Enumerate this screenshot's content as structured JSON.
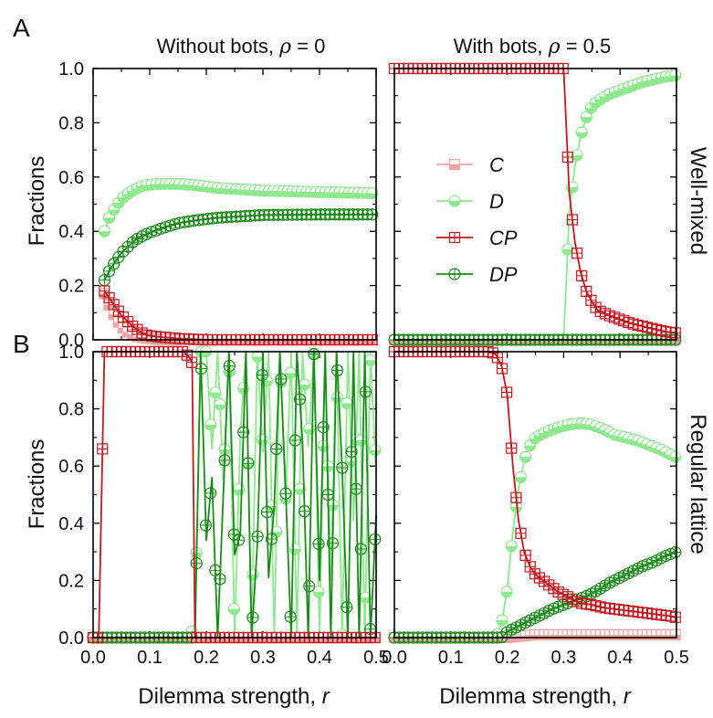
{
  "figure": {
    "panel_labels": [
      "A",
      "B"
    ],
    "column_titles": [
      {
        "prefix": "Without bots, ",
        "symbol": "ρ",
        "suffix": " = 0"
      },
      {
        "prefix": "With bots, ",
        "symbol": "ρ",
        "suffix": " = 0.5"
      }
    ],
    "row_titles": [
      "Well-mixed",
      "Regular lattice"
    ],
    "ylabel": "Fractions",
    "xlabel_prefix": "Dilemma strength, ",
    "xlabel_symbol": "r",
    "colors": {
      "C": "#f4a3a3",
      "D": "#8ee88e",
      "CP": "#c0181e",
      "DP": "#1a8a1a"
    }
  },
  "chart_data": [
    {
      "type": "line",
      "panel": "A-left",
      "title": "Without bots, ρ = 0",
      "xlim": [
        0,
        0.5
      ],
      "ylim": [
        0,
        1
      ],
      "xticks": [
        "0.0",
        "0.1",
        "0.2",
        "0.3",
        "0.4",
        "0.5"
      ],
      "yticks": [
        "0.0",
        "0.2",
        "0.4",
        "0.6",
        "0.8",
        "1.0"
      ],
      "legend": [
        "C",
        "D",
        "CP",
        "DP"
      ],
      "series": [
        {
          "name": "C",
          "points": [
            [
              0.02,
              0.17
            ],
            [
              0.03,
              0.12
            ],
            [
              0.04,
              0.08
            ],
            [
              0.05,
              0.05
            ],
            [
              0.06,
              0.03
            ],
            [
              0.07,
              0.02
            ],
            [
              0.08,
              0.01
            ],
            [
              0.1,
              0.005
            ],
            [
              0.12,
              0
            ],
            [
              0.5,
              0
            ]
          ]
        },
        {
          "name": "D",
          "points": [
            [
              0.02,
              0.4
            ],
            [
              0.03,
              0.46
            ],
            [
              0.05,
              0.52
            ],
            [
              0.07,
              0.55
            ],
            [
              0.09,
              0.57
            ],
            [
              0.12,
              0.575
            ],
            [
              0.15,
              0.575
            ],
            [
              0.18,
              0.57
            ],
            [
              0.22,
              0.56
            ],
            [
              0.3,
              0.55
            ],
            [
              0.4,
              0.545
            ],
            [
              0.5,
              0.54
            ]
          ]
        },
        {
          "name": "CP",
          "points": [
            [
              0.02,
              0.18
            ],
            [
              0.03,
              0.15
            ],
            [
              0.04,
              0.12
            ],
            [
              0.05,
              0.09
            ],
            [
              0.06,
              0.07
            ],
            [
              0.07,
              0.05
            ],
            [
              0.08,
              0.035
            ],
            [
              0.09,
              0.02
            ],
            [
              0.1,
              0.015
            ],
            [
              0.12,
              0.01
            ],
            [
              0.15,
              0.005
            ],
            [
              0.2,
              0
            ],
            [
              0.5,
              0
            ]
          ]
        },
        {
          "name": "DP",
          "points": [
            [
              0.02,
              0.22
            ],
            [
              0.03,
              0.26
            ],
            [
              0.04,
              0.29
            ],
            [
              0.05,
              0.32
            ],
            [
              0.06,
              0.34
            ],
            [
              0.07,
              0.36
            ],
            [
              0.08,
              0.375
            ],
            [
              0.1,
              0.395
            ],
            [
              0.12,
              0.41
            ],
            [
              0.15,
              0.43
            ],
            [
              0.18,
              0.44
            ],
            [
              0.22,
              0.45
            ],
            [
              0.26,
              0.455
            ],
            [
              0.3,
              0.46
            ],
            [
              0.4,
              0.462
            ],
            [
              0.5,
              0.462
            ]
          ]
        }
      ]
    },
    {
      "type": "line",
      "panel": "A-right",
      "title": "With bots, ρ = 0.5",
      "xlim": [
        0,
        0.5
      ],
      "ylim": [
        0,
        1
      ],
      "xticks": [
        "0.0",
        "0.1",
        "0.2",
        "0.3",
        "0.4",
        "0.5"
      ],
      "yticks": [
        "0.0",
        "0.2",
        "0.4",
        "0.6",
        "0.8",
        "1.0"
      ],
      "series": [
        {
          "name": "C",
          "points": [
            [
              0,
              0
            ],
            [
              0.5,
              0
            ]
          ]
        },
        {
          "name": "D",
          "points": [
            [
              0,
              0
            ],
            [
              0.3,
              0
            ],
            [
              0.31,
              0.47
            ],
            [
              0.32,
              0.64
            ],
            [
              0.33,
              0.75
            ],
            [
              0.34,
              0.82
            ],
            [
              0.35,
              0.86
            ],
            [
              0.36,
              0.88
            ],
            [
              0.38,
              0.905
            ],
            [
              0.4,
              0.92
            ],
            [
              0.42,
              0.935
            ],
            [
              0.44,
              0.95
            ],
            [
              0.46,
              0.96
            ],
            [
              0.48,
              0.97
            ],
            [
              0.5,
              0.975
            ]
          ]
        },
        {
          "name": "CP",
          "points": [
            [
              0,
              1
            ],
            [
              0.3,
              1
            ],
            [
              0.31,
              0.54
            ],
            [
              0.32,
              0.36
            ],
            [
              0.33,
              0.25
            ],
            [
              0.34,
              0.18
            ],
            [
              0.35,
              0.14
            ],
            [
              0.36,
              0.11
            ],
            [
              0.38,
              0.09
            ],
            [
              0.4,
              0.075
            ],
            [
              0.42,
              0.06
            ],
            [
              0.44,
              0.05
            ],
            [
              0.46,
              0.04
            ],
            [
              0.48,
              0.03
            ],
            [
              0.5,
              0.025
            ]
          ]
        },
        {
          "name": "DP",
          "points": [
            [
              0,
              0
            ],
            [
              0.5,
              0
            ]
          ]
        }
      ]
    },
    {
      "type": "line",
      "panel": "B-left",
      "xlim": [
        0,
        0.5
      ],
      "ylim": [
        0,
        1
      ],
      "xticks": [
        "0.0",
        "0.1",
        "0.2",
        "0.3",
        "0.4",
        "0.5"
      ],
      "yticks": [
        "0.0",
        "0.2",
        "0.4",
        "0.6",
        "0.8",
        "1.0"
      ],
      "series": [
        {
          "name": "C",
          "points": [
            [
              0,
              0
            ],
            [
              0.5,
              0
            ]
          ]
        },
        {
          "name": "D",
          "points": [
            [
              0,
              0
            ],
            [
              0.17,
              0
            ],
            [
              0.18,
              0.05
            ],
            [
              0.19,
              1
            ],
            [
              0.2,
              1
            ],
            [
              0.21,
              0.66
            ],
            [
              0.22,
              1
            ],
            [
              0.23,
              0.55
            ],
            [
              0.24,
              1
            ],
            [
              0.25,
              0
            ],
            [
              0.26,
              0.71
            ],
            [
              0.27,
              1
            ],
            [
              0.28,
              0
            ],
            [
              0.29,
              1
            ],
            [
              0.3,
              0.65
            ],
            [
              0.31,
              1
            ],
            [
              0.32,
              0
            ],
            [
              0.33,
              1
            ],
            [
              0.34,
              0.47
            ],
            [
              0.35,
              1
            ],
            [
              0.36,
              0
            ],
            [
              0.37,
              1
            ],
            [
              0.38,
              0.67
            ],
            [
              0.39,
              1
            ],
            [
              0.4,
              0
            ],
            [
              0.41,
              1
            ],
            [
              0.42,
              0.2
            ],
            [
              0.43,
              1
            ],
            [
              0.44,
              0
            ],
            [
              0.45,
              1
            ],
            [
              0.46,
              0.41
            ],
            [
              0.47,
              1
            ],
            [
              0.48,
              0
            ],
            [
              0.49,
              1
            ],
            [
              0.5,
              0.57
            ]
          ]
        },
        {
          "name": "CP",
          "points": [
            [
              0,
              0
            ],
            [
              0.01,
              0
            ],
            [
              0.02,
              1
            ],
            [
              0.16,
              1
            ],
            [
              0.17,
              0.98
            ],
            [
              0.175,
              0.96
            ],
            [
              0.18,
              0
            ],
            [
              0.5,
              0
            ]
          ]
        },
        {
          "name": "DP",
          "points": [
            [
              0,
              0
            ],
            [
              0.17,
              0
            ],
            [
              0.18,
              0
            ],
            [
              0.19,
              1
            ],
            [
              0.2,
              0.34
            ],
            [
              0.21,
              0.56
            ],
            [
              0.22,
              0
            ],
            [
              0.23,
              0.5
            ],
            [
              0.24,
              1
            ],
            [
              0.25,
              0.29
            ],
            [
              0.26,
              0.36
            ],
            [
              0.27,
              1
            ],
            [
              0.28,
              0
            ],
            [
              0.29,
              0.32
            ],
            [
              0.3,
              1
            ],
            [
              0.31,
              0.21
            ],
            [
              0.32,
              0.46
            ],
            [
              0.33,
              1
            ],
            [
              0.34,
              0.52
            ],
            [
              0.35,
              0
            ],
            [
              0.36,
              1
            ],
            [
              0.37,
              0.68
            ],
            [
              0.38,
              0
            ],
            [
              0.39,
              1
            ],
            [
              0.4,
              0.2
            ],
            [
              0.41,
              1
            ],
            [
              0.42,
              0
            ],
            [
              0.43,
              1
            ],
            [
              0.44,
              0.59
            ],
            [
              0.45,
              0
            ],
            [
              0.46,
              1
            ],
            [
              0.47,
              0
            ],
            [
              0.48,
              1
            ],
            [
              0.49,
              0
            ],
            [
              0.5,
              0.43
            ]
          ]
        }
      ]
    },
    {
      "type": "line",
      "panel": "B-right",
      "xlim": [
        0,
        0.5
      ],
      "ylim": [
        0,
        1
      ],
      "xticks": [
        "0.0",
        "0.1",
        "0.2",
        "0.3",
        "0.4",
        "0.5"
      ],
      "yticks": [
        "0.0",
        "0.2",
        "0.4",
        "0.6",
        "0.8",
        "1.0"
      ],
      "series": [
        {
          "name": "C",
          "points": [
            [
              0,
              0
            ],
            [
              0.2,
              0
            ],
            [
              0.22,
              0.005
            ],
            [
              0.25,
              0.01
            ],
            [
              0.3,
              0.01
            ],
            [
              0.5,
              0.01
            ]
          ]
        },
        {
          "name": "D",
          "points": [
            [
              0,
              0
            ],
            [
              0.18,
              0
            ],
            [
              0.19,
              0.05
            ],
            [
              0.2,
              0.17
            ],
            [
              0.21,
              0.37
            ],
            [
              0.22,
              0.52
            ],
            [
              0.23,
              0.62
            ],
            [
              0.24,
              0.67
            ],
            [
              0.25,
              0.7
            ],
            [
              0.27,
              0.72
            ],
            [
              0.29,
              0.735
            ],
            [
              0.31,
              0.745
            ],
            [
              0.33,
              0.75
            ],
            [
              0.35,
              0.745
            ],
            [
              0.37,
              0.73
            ],
            [
              0.39,
              0.71
            ],
            [
              0.41,
              0.7
            ],
            [
              0.43,
              0.69
            ],
            [
              0.45,
              0.675
            ],
            [
              0.47,
              0.66
            ],
            [
              0.49,
              0.64
            ],
            [
              0.5,
              0.63
            ]
          ]
        },
        {
          "name": "CP",
          "points": [
            [
              0,
              1
            ],
            [
              0.17,
              1
            ],
            [
              0.18,
              0.99
            ],
            [
              0.19,
              0.95
            ],
            [
              0.2,
              0.85
            ],
            [
              0.21,
              0.6
            ],
            [
              0.22,
              0.41
            ],
            [
              0.23,
              0.3
            ],
            [
              0.24,
              0.25
            ],
            [
              0.25,
              0.22
            ],
            [
              0.27,
              0.19
            ],
            [
              0.29,
              0.16
            ],
            [
              0.31,
              0.14
            ],
            [
              0.33,
              0.12
            ],
            [
              0.35,
              0.115
            ],
            [
              0.37,
              0.105
            ],
            [
              0.39,
              0.1
            ],
            [
              0.41,
              0.095
            ],
            [
              0.43,
              0.09
            ],
            [
              0.45,
              0.085
            ],
            [
              0.47,
              0.08
            ],
            [
              0.49,
              0.075
            ],
            [
              0.5,
              0.07
            ]
          ]
        },
        {
          "name": "DP",
          "points": [
            [
              0,
              0
            ],
            [
              0.19,
              0
            ],
            [
              0.2,
              0.02
            ],
            [
              0.22,
              0.04
            ],
            [
              0.24,
              0.06
            ],
            [
              0.26,
              0.08
            ],
            [
              0.28,
              0.1
            ],
            [
              0.3,
              0.115
            ],
            [
              0.32,
              0.13
            ],
            [
              0.34,
              0.145
            ],
            [
              0.36,
              0.165
            ],
            [
              0.38,
              0.19
            ],
            [
              0.4,
              0.21
            ],
            [
              0.42,
              0.23
            ],
            [
              0.44,
              0.25
            ],
            [
              0.46,
              0.265
            ],
            [
              0.48,
              0.285
            ],
            [
              0.5,
              0.3
            ]
          ]
        }
      ]
    }
  ]
}
